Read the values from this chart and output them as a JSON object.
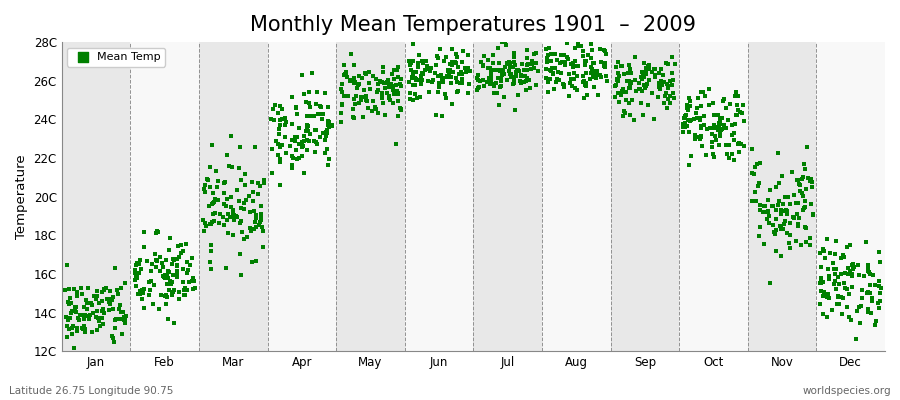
{
  "title": "Monthly Mean Temperatures 1901  –  2009",
  "ylabel": "Temperature",
  "subtitle": "Latitude 26.75 Longitude 90.75",
  "watermark": "worldspecies.org",
  "marker_color": "#008000",
  "marker": "s",
  "marker_size": 2.5,
  "ylim": [
    12,
    28
  ],
  "yticks": [
    12,
    14,
    16,
    18,
    20,
    22,
    24,
    26,
    28
  ],
  "ytick_labels": [
    "12C",
    "14C",
    "16C",
    "18C",
    "20C",
    "22C",
    "24C",
    "26C",
    "28C"
  ],
  "background_color": "#ffffff",
  "band_colors": [
    "#e8e8e8",
    "#f8f8f8"
  ],
  "title_fontsize": 15,
  "monthly_means": [
    14.0,
    15.8,
    19.5,
    23.5,
    25.5,
    26.2,
    26.5,
    26.5,
    25.8,
    23.8,
    19.5,
    15.5
  ],
  "monthly_stds": [
    0.9,
    1.1,
    1.3,
    1.1,
    0.8,
    0.7,
    0.7,
    0.7,
    0.8,
    1.0,
    1.4,
    1.1
  ],
  "n_years": 109,
  "months": [
    "Jan",
    "Feb",
    "Mar",
    "Apr",
    "May",
    "Jun",
    "Jul",
    "Aug",
    "Sep",
    "Oct",
    "Nov",
    "Dec"
  ],
  "legend_label": "Mean Temp"
}
